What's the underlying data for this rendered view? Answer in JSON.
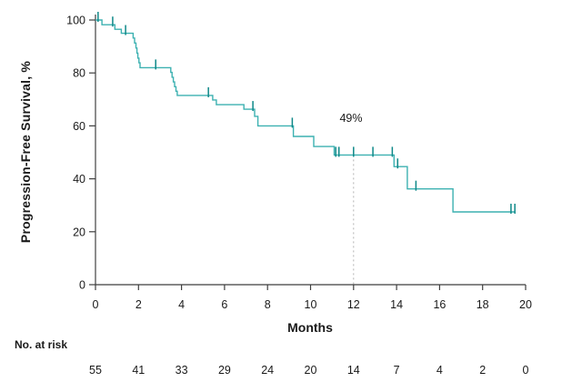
{
  "chart_data": {
    "type": "line",
    "subtype": "kaplan-meier-step-curve",
    "title": "",
    "xlabel": "Months",
    "ylabel": "Progression-Free Survival, %",
    "xlim": [
      0,
      20
    ],
    "ylim": [
      0,
      100
    ],
    "x_ticks": [
      0,
      2,
      4,
      6,
      8,
      10,
      12,
      14,
      16,
      18,
      20
    ],
    "y_ticks": [
      0,
      20,
      40,
      60,
      80,
      100
    ],
    "grid": false,
    "legend": null,
    "series": [
      {
        "name": "Progression-Free Survival",
        "color": "#3cb1b1",
        "censor_color": "#0e8888",
        "step_points": [
          [
            0,
            100
          ],
          [
            0.3,
            100
          ],
          [
            0.3,
            98.2
          ],
          [
            0.9,
            98.2
          ],
          [
            0.9,
            96.5
          ],
          [
            1.2,
            96.5
          ],
          [
            1.2,
            95
          ],
          [
            1.75,
            95
          ],
          [
            1.75,
            93.2
          ],
          [
            1.82,
            93.2
          ],
          [
            1.82,
            91.3
          ],
          [
            1.88,
            91.3
          ],
          [
            1.88,
            89.4
          ],
          [
            1.93,
            89.4
          ],
          [
            1.93,
            87.5
          ],
          [
            1.97,
            87.5
          ],
          [
            1.97,
            85.6
          ],
          [
            2.02,
            85.6
          ],
          [
            2.02,
            83.8
          ],
          [
            2.07,
            83.8
          ],
          [
            2.07,
            82
          ],
          [
            3.5,
            82
          ],
          [
            3.5,
            80.2
          ],
          [
            3.56,
            80.2
          ],
          [
            3.56,
            78.4
          ],
          [
            3.62,
            78.4
          ],
          [
            3.62,
            76.6
          ],
          [
            3.68,
            76.6
          ],
          [
            3.68,
            74.8
          ],
          [
            3.74,
            74.8
          ],
          [
            3.74,
            73.1
          ],
          [
            3.8,
            73.1
          ],
          [
            3.8,
            71.5
          ],
          [
            5.45,
            71.5
          ],
          [
            5.45,
            69.8
          ],
          [
            5.62,
            69.8
          ],
          [
            5.62,
            68
          ],
          [
            6.9,
            68
          ],
          [
            6.9,
            66.3
          ],
          [
            7.4,
            66.3
          ],
          [
            7.4,
            63.6
          ],
          [
            7.55,
            63.6
          ],
          [
            7.55,
            60
          ],
          [
            9.2,
            60
          ],
          [
            9.2,
            56
          ],
          [
            10.15,
            56
          ],
          [
            10.15,
            52.2
          ],
          [
            11.1,
            52.2
          ],
          [
            11.1,
            49
          ],
          [
            13.88,
            49
          ],
          [
            13.88,
            44.6
          ],
          [
            14.5,
            44.6
          ],
          [
            14.5,
            36.2
          ],
          [
            16.62,
            36.2
          ],
          [
            16.62,
            27.5
          ],
          [
            19.5,
            27.5
          ]
        ],
        "censor_marks": [
          [
            0.12,
            100
          ],
          [
            0.8,
            98.2
          ],
          [
            1.4,
            95
          ],
          [
            2.8,
            82
          ],
          [
            5.25,
            71.5
          ],
          [
            7.32,
            66.3
          ],
          [
            9.15,
            60
          ],
          [
            11.17,
            49
          ],
          [
            11.32,
            49
          ],
          [
            12,
            49
          ],
          [
            12.9,
            49
          ],
          [
            13.8,
            49
          ],
          [
            14.05,
            44.6
          ],
          [
            14.9,
            36.2
          ],
          [
            19.32,
            27.5
          ],
          [
            19.5,
            27.5
          ]
        ]
      }
    ],
    "annotation": {
      "label": "49%",
      "x_month": 12,
      "y_percent": 49
    },
    "reference_line": {
      "x_month": 12,
      "from_percent": 0,
      "to_percent": 49,
      "style": "dashed",
      "color": "#b4b4b4"
    },
    "risk_table": {
      "label": "No. at risk",
      "times_months": [
        0,
        2,
        4,
        6,
        8,
        10,
        12,
        14,
        16,
        18,
        20
      ],
      "counts": [
        55,
        41,
        33,
        29,
        24,
        20,
        14,
        7,
        4,
        2,
        0
      ]
    },
    "colors": {
      "curve": "#3cb1b1",
      "censor": "#0e8888",
      "axis": "#3f3f3f",
      "text": "#1a1a1a",
      "dashed": "#b4b4b4",
      "background": "#ffffff"
    }
  }
}
